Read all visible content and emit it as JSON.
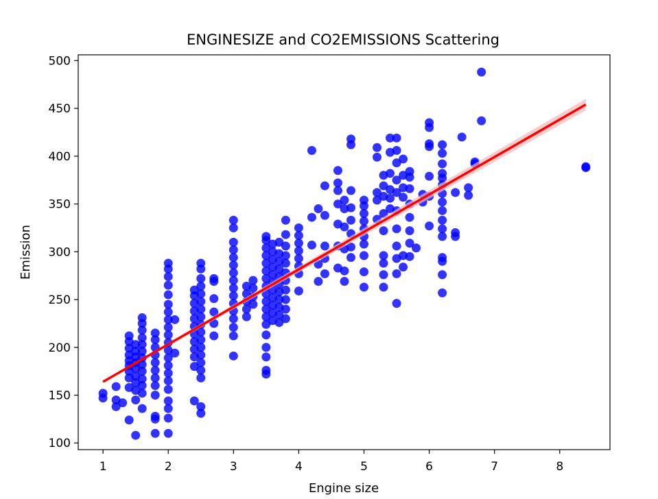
{
  "chart_data": {
    "type": "scatter",
    "title": "ENGINESIZE and CO2EMISSIONS Scattering",
    "xlabel": "Engine size",
    "ylabel": "Emission",
    "xlim": [
      0.62,
      8.77
    ],
    "ylim": [
      93,
      506
    ],
    "xticks": [
      1,
      2,
      3,
      4,
      5,
      6,
      7,
      8
    ],
    "yticks": [
      100,
      150,
      200,
      250,
      300,
      350,
      400,
      450,
      500
    ],
    "xtick_labels": [
      "1",
      "2",
      "3",
      "4",
      "5",
      "6",
      "7",
      "8"
    ],
    "ytick_labels": [
      "100",
      "150",
      "200",
      "250",
      "300",
      "350",
      "400",
      "450",
      "500"
    ],
    "grid": false,
    "colors": {
      "points": "#0000ff",
      "regression": "#ff0000",
      "ci_band": "#f4b6b6"
    },
    "regression": {
      "x": [
        1.0,
        8.4
      ],
      "y": [
        164,
        454
      ],
      "ci_halfwidth": [
        1,
        6
      ]
    },
    "points": [
      {
        "x": 1.0,
        "y": 147
      },
      {
        "x": 1.0,
        "y": 152
      },
      {
        "x": 1.2,
        "y": 145
      },
      {
        "x": 1.2,
        "y": 138
      },
      {
        "x": 1.2,
        "y": 159
      },
      {
        "x": 1.3,
        "y": 142
      },
      {
        "x": 1.4,
        "y": 124
      },
      {
        "x": 1.4,
        "y": 158
      },
      {
        "x": 1.4,
        "y": 168
      },
      {
        "x": 1.4,
        "y": 175
      },
      {
        "x": 1.4,
        "y": 181
      },
      {
        "x": 1.4,
        "y": 186
      },
      {
        "x": 1.4,
        "y": 192
      },
      {
        "x": 1.4,
        "y": 199
      },
      {
        "x": 1.4,
        "y": 206
      },
      {
        "x": 1.4,
        "y": 212
      },
      {
        "x": 1.5,
        "y": 108
      },
      {
        "x": 1.5,
        "y": 145
      },
      {
        "x": 1.5,
        "y": 155
      },
      {
        "x": 1.5,
        "y": 163
      },
      {
        "x": 1.5,
        "y": 170
      },
      {
        "x": 1.5,
        "y": 178
      },
      {
        "x": 1.5,
        "y": 184
      },
      {
        "x": 1.5,
        "y": 190
      },
      {
        "x": 1.5,
        "y": 196
      },
      {
        "x": 1.5,
        "y": 203
      },
      {
        "x": 1.6,
        "y": 136
      },
      {
        "x": 1.6,
        "y": 152
      },
      {
        "x": 1.6,
        "y": 160
      },
      {
        "x": 1.6,
        "y": 167
      },
      {
        "x": 1.6,
        "y": 175
      },
      {
        "x": 1.6,
        "y": 182
      },
      {
        "x": 1.6,
        "y": 189
      },
      {
        "x": 1.6,
        "y": 196
      },
      {
        "x": 1.6,
        "y": 203
      },
      {
        "x": 1.6,
        "y": 210
      },
      {
        "x": 1.6,
        "y": 218
      },
      {
        "x": 1.6,
        "y": 225
      },
      {
        "x": 1.6,
        "y": 231
      },
      {
        "x": 1.8,
        "y": 110
      },
      {
        "x": 1.8,
        "y": 125
      },
      {
        "x": 1.8,
        "y": 128
      },
      {
        "x": 1.8,
        "y": 150
      },
      {
        "x": 1.8,
        "y": 160
      },
      {
        "x": 1.8,
        "y": 168
      },
      {
        "x": 1.8,
        "y": 176
      },
      {
        "x": 1.8,
        "y": 184
      },
      {
        "x": 1.8,
        "y": 192
      },
      {
        "x": 1.8,
        "y": 200
      },
      {
        "x": 1.8,
        "y": 208
      },
      {
        "x": 1.8,
        "y": 215
      },
      {
        "x": 2.0,
        "y": 110
      },
      {
        "x": 2.0,
        "y": 126
      },
      {
        "x": 2.0,
        "y": 136
      },
      {
        "x": 2.0,
        "y": 144
      },
      {
        "x": 2.0,
        "y": 156
      },
      {
        "x": 2.0,
        "y": 165
      },
      {
        "x": 2.0,
        "y": 173
      },
      {
        "x": 2.0,
        "y": 181
      },
      {
        "x": 2.0,
        "y": 189
      },
      {
        "x": 2.0,
        "y": 197
      },
      {
        "x": 2.0,
        "y": 205
      },
      {
        "x": 2.0,
        "y": 213
      },
      {
        "x": 2.0,
        "y": 221
      },
      {
        "x": 2.0,
        "y": 229
      },
      {
        "x": 2.0,
        "y": 237
      },
      {
        "x": 2.0,
        "y": 245
      },
      {
        "x": 2.0,
        "y": 255
      },
      {
        "x": 2.0,
        "y": 265
      },
      {
        "x": 2.0,
        "y": 274
      },
      {
        "x": 2.0,
        "y": 282
      },
      {
        "x": 2.0,
        "y": 288
      },
      {
        "x": 2.1,
        "y": 194
      },
      {
        "x": 2.1,
        "y": 229
      },
      {
        "x": 2.4,
        "y": 144
      },
      {
        "x": 2.4,
        "y": 180
      },
      {
        "x": 2.4,
        "y": 190
      },
      {
        "x": 2.4,
        "y": 198
      },
      {
        "x": 2.4,
        "y": 206
      },
      {
        "x": 2.4,
        "y": 214
      },
      {
        "x": 2.4,
        "y": 222
      },
      {
        "x": 2.4,
        "y": 230
      },
      {
        "x": 2.4,
        "y": 238
      },
      {
        "x": 2.4,
        "y": 246
      },
      {
        "x": 2.4,
        "y": 254
      },
      {
        "x": 2.4,
        "y": 260
      },
      {
        "x": 2.5,
        "y": 131
      },
      {
        "x": 2.5,
        "y": 138
      },
      {
        "x": 2.5,
        "y": 168
      },
      {
        "x": 2.5,
        "y": 176
      },
      {
        "x": 2.5,
        "y": 184
      },
      {
        "x": 2.5,
        "y": 192
      },
      {
        "x": 2.5,
        "y": 200
      },
      {
        "x": 2.5,
        "y": 208
      },
      {
        "x": 2.5,
        "y": 216
      },
      {
        "x": 2.5,
        "y": 224
      },
      {
        "x": 2.5,
        "y": 232
      },
      {
        "x": 2.5,
        "y": 240
      },
      {
        "x": 2.5,
        "y": 248
      },
      {
        "x": 2.5,
        "y": 256
      },
      {
        "x": 2.5,
        "y": 264
      },
      {
        "x": 2.5,
        "y": 272
      },
      {
        "x": 2.5,
        "y": 282
      },
      {
        "x": 2.5,
        "y": 288
      },
      {
        "x": 2.7,
        "y": 212
      },
      {
        "x": 2.7,
        "y": 225
      },
      {
        "x": 2.7,
        "y": 237
      },
      {
        "x": 2.7,
        "y": 251
      },
      {
        "x": 2.7,
        "y": 269
      },
      {
        "x": 2.7,
        "y": 272
      },
      {
        "x": 3.0,
        "y": 191
      },
      {
        "x": 3.0,
        "y": 212
      },
      {
        "x": 3.0,
        "y": 221
      },
      {
        "x": 3.0,
        "y": 230
      },
      {
        "x": 3.0,
        "y": 238
      },
      {
        "x": 3.0,
        "y": 246
      },
      {
        "x": 3.0,
        "y": 254
      },
      {
        "x": 3.0,
        "y": 262
      },
      {
        "x": 3.0,
        "y": 270
      },
      {
        "x": 3.0,
        "y": 278
      },
      {
        "x": 3.0,
        "y": 286
      },
      {
        "x": 3.0,
        "y": 294
      },
      {
        "x": 3.0,
        "y": 302
      },
      {
        "x": 3.0,
        "y": 310
      },
      {
        "x": 3.0,
        "y": 325
      },
      {
        "x": 3.0,
        "y": 333
      },
      {
        "x": 3.2,
        "y": 232
      },
      {
        "x": 3.2,
        "y": 240
      },
      {
        "x": 3.2,
        "y": 248
      },
      {
        "x": 3.2,
        "y": 256
      },
      {
        "x": 3.2,
        "y": 264
      },
      {
        "x": 3.3,
        "y": 245
      },
      {
        "x": 3.3,
        "y": 253
      },
      {
        "x": 3.3,
        "y": 262
      },
      {
        "x": 3.3,
        "y": 270
      },
      {
        "x": 3.5,
        "y": 172
      },
      {
        "x": 3.5,
        "y": 176
      },
      {
        "x": 3.5,
        "y": 190
      },
      {
        "x": 3.5,
        "y": 200
      },
      {
        "x": 3.5,
        "y": 213
      },
      {
        "x": 3.5,
        "y": 224
      },
      {
        "x": 3.5,
        "y": 232
      },
      {
        "x": 3.5,
        "y": 240
      },
      {
        "x": 3.5,
        "y": 248
      },
      {
        "x": 3.5,
        "y": 256
      },
      {
        "x": 3.5,
        "y": 264
      },
      {
        "x": 3.5,
        "y": 272
      },
      {
        "x": 3.5,
        "y": 280
      },
      {
        "x": 3.5,
        "y": 288
      },
      {
        "x": 3.5,
        "y": 296
      },
      {
        "x": 3.5,
        "y": 304
      },
      {
        "x": 3.5,
        "y": 312
      },
      {
        "x": 3.5,
        "y": 316
      },
      {
        "x": 3.6,
        "y": 228
      },
      {
        "x": 3.6,
        "y": 236
      },
      {
        "x": 3.6,
        "y": 244
      },
      {
        "x": 3.6,
        "y": 252
      },
      {
        "x": 3.6,
        "y": 260
      },
      {
        "x": 3.6,
        "y": 268
      },
      {
        "x": 3.6,
        "y": 276
      },
      {
        "x": 3.6,
        "y": 284
      },
      {
        "x": 3.6,
        "y": 292
      },
      {
        "x": 3.6,
        "y": 300
      },
      {
        "x": 3.6,
        "y": 308
      },
      {
        "x": 3.7,
        "y": 226
      },
      {
        "x": 3.7,
        "y": 234
      },
      {
        "x": 3.7,
        "y": 242
      },
      {
        "x": 3.7,
        "y": 250
      },
      {
        "x": 3.7,
        "y": 258
      },
      {
        "x": 3.7,
        "y": 266
      },
      {
        "x": 3.7,
        "y": 274
      },
      {
        "x": 3.7,
        "y": 282
      },
      {
        "x": 3.7,
        "y": 290
      },
      {
        "x": 3.7,
        "y": 298
      },
      {
        "x": 3.7,
        "y": 310
      },
      {
        "x": 3.8,
        "y": 230
      },
      {
        "x": 3.8,
        "y": 240
      },
      {
        "x": 3.8,
        "y": 250
      },
      {
        "x": 3.8,
        "y": 260
      },
      {
        "x": 3.8,
        "y": 270
      },
      {
        "x": 3.8,
        "y": 278
      },
      {
        "x": 3.8,
        "y": 288
      },
      {
        "x": 3.8,
        "y": 296
      },
      {
        "x": 3.8,
        "y": 306
      },
      {
        "x": 3.8,
        "y": 318
      },
      {
        "x": 3.8,
        "y": 333
      },
      {
        "x": 4.0,
        "y": 259
      },
      {
        "x": 4.0,
        "y": 277
      },
      {
        "x": 4.0,
        "y": 285
      },
      {
        "x": 4.0,
        "y": 293
      },
      {
        "x": 4.0,
        "y": 301
      },
      {
        "x": 4.0,
        "y": 309
      },
      {
        "x": 4.0,
        "y": 317
      },
      {
        "x": 4.0,
        "y": 325
      },
      {
        "x": 4.2,
        "y": 307
      },
      {
        "x": 4.2,
        "y": 336
      },
      {
        "x": 4.2,
        "y": 406
      },
      {
        "x": 4.3,
        "y": 269
      },
      {
        "x": 4.3,
        "y": 287
      },
      {
        "x": 4.3,
        "y": 345
      },
      {
        "x": 4.4,
        "y": 277
      },
      {
        "x": 4.4,
        "y": 293
      },
      {
        "x": 4.4,
        "y": 306
      },
      {
        "x": 4.4,
        "y": 338
      },
      {
        "x": 4.4,
        "y": 369
      },
      {
        "x": 4.6,
        "y": 283
      },
      {
        "x": 4.6,
        "y": 306
      },
      {
        "x": 4.6,
        "y": 329
      },
      {
        "x": 4.6,
        "y": 350
      },
      {
        "x": 4.6,
        "y": 364
      },
      {
        "x": 4.6,
        "y": 372
      },
      {
        "x": 4.6,
        "y": 385
      },
      {
        "x": 4.7,
        "y": 269
      },
      {
        "x": 4.7,
        "y": 280
      },
      {
        "x": 4.7,
        "y": 303
      },
      {
        "x": 4.7,
        "y": 326
      },
      {
        "x": 4.7,
        "y": 345
      },
      {
        "x": 4.7,
        "y": 354
      },
      {
        "x": 4.8,
        "y": 294
      },
      {
        "x": 4.8,
        "y": 305
      },
      {
        "x": 4.8,
        "y": 319
      },
      {
        "x": 4.8,
        "y": 333
      },
      {
        "x": 4.8,
        "y": 346
      },
      {
        "x": 4.8,
        "y": 364
      },
      {
        "x": 4.8,
        "y": 412
      },
      {
        "x": 4.8,
        "y": 418
      },
      {
        "x": 5.0,
        "y": 263
      },
      {
        "x": 5.0,
        "y": 279
      },
      {
        "x": 5.0,
        "y": 296
      },
      {
        "x": 5.0,
        "y": 308
      },
      {
        "x": 5.0,
        "y": 316
      },
      {
        "x": 5.0,
        "y": 324
      },
      {
        "x": 5.0,
        "y": 332
      },
      {
        "x": 5.0,
        "y": 340
      },
      {
        "x": 5.0,
        "y": 348
      },
      {
        "x": 5.0,
        "y": 354
      },
      {
        "x": 5.2,
        "y": 334
      },
      {
        "x": 5.2,
        "y": 354
      },
      {
        "x": 5.2,
        "y": 362
      },
      {
        "x": 5.2,
        "y": 399
      },
      {
        "x": 5.2,
        "y": 409
      },
      {
        "x": 5.3,
        "y": 263
      },
      {
        "x": 5.3,
        "y": 276
      },
      {
        "x": 5.3,
        "y": 288
      },
      {
        "x": 5.3,
        "y": 296
      },
      {
        "x": 5.3,
        "y": 322
      },
      {
        "x": 5.3,
        "y": 340
      },
      {
        "x": 5.3,
        "y": 358
      },
      {
        "x": 5.3,
        "y": 369
      },
      {
        "x": 5.3,
        "y": 380
      },
      {
        "x": 5.4,
        "y": 345
      },
      {
        "x": 5.4,
        "y": 356
      },
      {
        "x": 5.4,
        "y": 365
      },
      {
        "x": 5.4,
        "y": 382
      },
      {
        "x": 5.4,
        "y": 404
      },
      {
        "x": 5.4,
        "y": 419
      },
      {
        "x": 5.5,
        "y": 246
      },
      {
        "x": 5.5,
        "y": 277
      },
      {
        "x": 5.5,
        "y": 293
      },
      {
        "x": 5.5,
        "y": 306
      },
      {
        "x": 5.5,
        "y": 324
      },
      {
        "x": 5.5,
        "y": 343
      },
      {
        "x": 5.5,
        "y": 362
      },
      {
        "x": 5.5,
        "y": 375
      },
      {
        "x": 5.5,
        "y": 393
      },
      {
        "x": 5.5,
        "y": 406
      },
      {
        "x": 5.5,
        "y": 419
      },
      {
        "x": 5.6,
        "y": 284
      },
      {
        "x": 5.6,
        "y": 296
      },
      {
        "x": 5.6,
        "y": 357
      },
      {
        "x": 5.6,
        "y": 367
      },
      {
        "x": 5.6,
        "y": 380
      },
      {
        "x": 5.6,
        "y": 397
      },
      {
        "x": 5.7,
        "y": 295
      },
      {
        "x": 5.7,
        "y": 309
      },
      {
        "x": 5.7,
        "y": 322
      },
      {
        "x": 5.7,
        "y": 336
      },
      {
        "x": 5.7,
        "y": 350
      },
      {
        "x": 5.7,
        "y": 366
      },
      {
        "x": 5.7,
        "y": 378
      },
      {
        "x": 5.7,
        "y": 384
      },
      {
        "x": 5.8,
        "y": 304
      },
      {
        "x": 5.9,
        "y": 352
      },
      {
        "x": 5.9,
        "y": 360
      },
      {
        "x": 6.0,
        "y": 327
      },
      {
        "x": 6.0,
        "y": 358
      },
      {
        "x": 6.0,
        "y": 379
      },
      {
        "x": 6.0,
        "y": 410
      },
      {
        "x": 6.0,
        "y": 413
      },
      {
        "x": 6.0,
        "y": 430
      },
      {
        "x": 6.0,
        "y": 435
      },
      {
        "x": 6.2,
        "y": 257
      },
      {
        "x": 6.2,
        "y": 276
      },
      {
        "x": 6.2,
        "y": 290
      },
      {
        "x": 6.2,
        "y": 294
      },
      {
        "x": 6.2,
        "y": 316
      },
      {
        "x": 6.2,
        "y": 324
      },
      {
        "x": 6.2,
        "y": 333
      },
      {
        "x": 6.2,
        "y": 343
      },
      {
        "x": 6.2,
        "y": 352
      },
      {
        "x": 6.2,
        "y": 361
      },
      {
        "x": 6.2,
        "y": 370
      },
      {
        "x": 6.2,
        "y": 377
      },
      {
        "x": 6.2,
        "y": 382
      },
      {
        "x": 6.2,
        "y": 392
      },
      {
        "x": 6.2,
        "y": 403
      },
      {
        "x": 6.2,
        "y": 412
      },
      {
        "x": 6.4,
        "y": 316
      },
      {
        "x": 6.4,
        "y": 320
      },
      {
        "x": 6.4,
        "y": 362
      },
      {
        "x": 6.5,
        "y": 420
      },
      {
        "x": 6.6,
        "y": 359
      },
      {
        "x": 6.6,
        "y": 367
      },
      {
        "x": 6.7,
        "y": 392
      },
      {
        "x": 6.7,
        "y": 394
      },
      {
        "x": 6.8,
        "y": 437
      },
      {
        "x": 6.8,
        "y": 488
      },
      {
        "x": 8.4,
        "y": 388
      },
      {
        "x": 8.4,
        "y": 389
      }
    ]
  }
}
